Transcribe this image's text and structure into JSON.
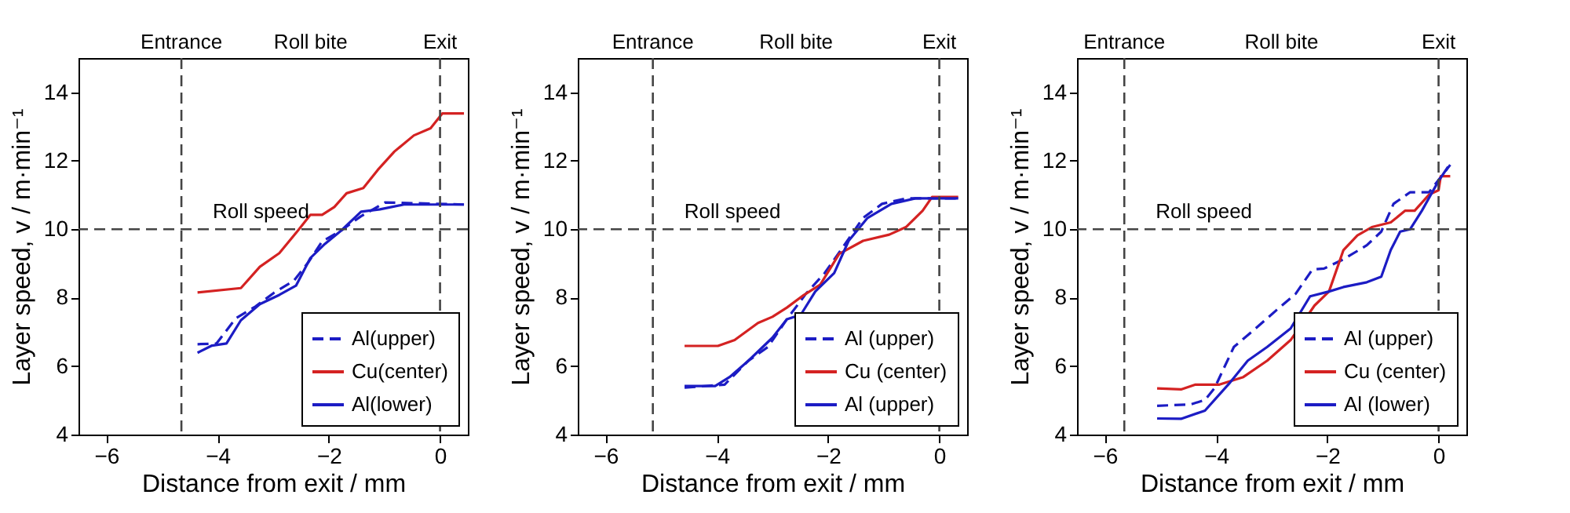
{
  "chart_data": [
    {
      "type": "line",
      "xlabel": "Distance from exit / mm",
      "ylabel": "Layer speed, v / m·min⁻¹",
      "xlim": [
        -6.5,
        0.5
      ],
      "ylim": [
        4,
        15
      ],
      "xticks": [
        -6,
        -4,
        -2,
        0
      ],
      "yticks": [
        4,
        6,
        8,
        10,
        12,
        14
      ],
      "grid": false,
      "legend": "bottom right",
      "annotations": [
        "Roll bite"
      ],
      "ref_lines": [
        {
          "axis": "x",
          "value": -4.65,
          "label": "Entrance",
          "line_style": "dashed"
        },
        {
          "axis": "x",
          "value": 0,
          "label": "Exit",
          "line_style": "dashed"
        },
        {
          "axis": "y",
          "value": 10,
          "label": "Roll speed",
          "line_style": "dashed"
        }
      ],
      "series": [
        {
          "name": "Al(upper)",
          "color": "#1c1cc4",
          "line_style": "dashed",
          "x": [
            -4.36,
            -4.02,
            -3.67,
            -3.32,
            -2.98,
            -2.63,
            -2.37,
            -2.12,
            -1.77,
            -1.42,
            -0.99,
            -0.47,
            0.43
          ],
          "values": [
            6.64,
            6.66,
            7.4,
            7.74,
            8.15,
            8.49,
            9.03,
            9.64,
            9.97,
            10.38,
            10.78,
            10.76,
            10.72
          ]
        },
        {
          "name": "Cu(center)",
          "color": "#d42222",
          "line_style": "solid",
          "x": [
            -4.36,
            -3.58,
            -3.24,
            -2.89,
            -2.55,
            -2.33,
            -2.12,
            -1.9,
            -1.68,
            -1.38,
            -1.12,
            -0.82,
            -0.47,
            -0.17,
            0.04,
            0.43
          ],
          "values": [
            8.15,
            8.28,
            8.9,
            9.3,
            9.97,
            10.42,
            10.42,
            10.65,
            11.05,
            11.2,
            11.73,
            12.27,
            12.74,
            12.95,
            13.38,
            13.38
          ]
        },
        {
          "name": "Al(lower)",
          "color": "#1c1cc4",
          "line_style": "solid",
          "x": [
            -4.36,
            -4.1,
            -3.84,
            -3.58,
            -3.24,
            -2.89,
            -2.59,
            -2.33,
            -2.07,
            -1.77,
            -1.42,
            -1.08,
            -0.65,
            0.43
          ],
          "values": [
            6.39,
            6.6,
            6.66,
            7.34,
            7.81,
            8.08,
            8.35,
            9.16,
            9.57,
            9.97,
            10.51,
            10.58,
            10.72,
            10.72
          ]
        }
      ]
    },
    {
      "type": "line",
      "xlabel": "Distance from exit / mm",
      "ylabel": "Layer speed, v / m·min⁻¹",
      "xlim": [
        -6.5,
        0.5
      ],
      "ylim": [
        4,
        15
      ],
      "xticks": [
        -6,
        -4,
        -2,
        0
      ],
      "yticks": [
        4,
        6,
        8,
        10,
        12,
        14
      ],
      "grid": false,
      "legend": "bottom right",
      "annotations": [
        "Roll bite"
      ],
      "ref_lines": [
        {
          "axis": "x",
          "value": -5.15,
          "label": "Entrance",
          "line_style": "dashed"
        },
        {
          "axis": "x",
          "value": 0,
          "label": "Exit",
          "line_style": "dashed"
        },
        {
          "axis": "y",
          "value": 10,
          "label": "Roll speed",
          "line_style": "dashed"
        }
      ],
      "series": [
        {
          "name": "Al (upper)",
          "color": "#1c1cc4",
          "line_style": "dashed",
          "x": [
            -4.58,
            -3.86,
            -3.43,
            -3.08,
            -2.74,
            -2.4,
            -2.06,
            -1.71,
            -1.37,
            -1.03,
            -0.6,
            0.34
          ],
          "values": [
            5.37,
            5.46,
            6.16,
            6.56,
            7.37,
            8.11,
            8.72,
            9.53,
            10.33,
            10.74,
            10.9,
            10.9
          ]
        },
        {
          "name": "Cu (center)",
          "color": "#d42222",
          "line_style": "solid",
          "x": [
            -4.58,
            -3.98,
            -3.68,
            -3.26,
            -3.0,
            -2.74,
            -2.44,
            -2.14,
            -1.8,
            -1.37,
            -0.9,
            -0.6,
            -0.3,
            -0.13,
            0.34
          ],
          "values": [
            6.59,
            6.59,
            6.76,
            7.26,
            7.44,
            7.71,
            8.07,
            8.38,
            9.28,
            9.66,
            9.84,
            10.06,
            10.54,
            10.94,
            10.94
          ]
        },
        {
          "name": "Al (upper)",
          "color": "#1c1cc4",
          "line_style": "solid",
          "x": [
            -4.58,
            -4.03,
            -3.77,
            -3.43,
            -3.0,
            -2.74,
            -2.49,
            -2.23,
            -1.89,
            -1.63,
            -1.29,
            -0.86,
            -0.43,
            0.34
          ],
          "values": [
            5.42,
            5.42,
            5.68,
            6.16,
            6.83,
            7.37,
            7.5,
            8.18,
            8.72,
            9.66,
            10.33,
            10.74,
            10.9,
            10.9
          ]
        }
      ]
    },
    {
      "type": "line",
      "xlabel": "Distance from exit / mm",
      "ylabel": "Layer speed, v / m·min⁻¹",
      "xlim": [
        -6.5,
        0.5
      ],
      "ylim": [
        4,
        15
      ],
      "xticks": [
        -6,
        -4,
        -2,
        0
      ],
      "yticks": [
        4,
        6,
        8,
        10,
        12,
        14
      ],
      "grid": false,
      "legend": "bottom right",
      "annotations": [
        "Roll bite"
      ],
      "ref_lines": [
        {
          "axis": "x",
          "value": -5.65,
          "label": "Entrance",
          "line_style": "dashed"
        },
        {
          "axis": "x",
          "value": 0,
          "label": "Exit",
          "line_style": "dashed"
        },
        {
          "axis": "y",
          "value": 10,
          "label": "Roll speed",
          "line_style": "dashed"
        }
      ],
      "series": [
        {
          "name": "Al (upper)",
          "color": "#1c1cc4",
          "line_style": "dashed",
          "x": [
            -5.06,
            -4.46,
            -4.2,
            -4.03,
            -3.68,
            -3.34,
            -2.91,
            -2.57,
            -2.27,
            -2.06,
            -1.71,
            -1.29,
            -1.03,
            -0.81,
            -0.51,
            -0.17,
            0.21
          ],
          "values": [
            4.84,
            4.88,
            5.01,
            5.35,
            6.56,
            7.03,
            7.64,
            8.11,
            8.82,
            8.85,
            9.12,
            9.53,
            9.93,
            10.74,
            11.08,
            11.08,
            11.88
          ]
        },
        {
          "name": "Cu (center)",
          "color": "#d42222",
          "line_style": "solid",
          "x": [
            -5.06,
            -4.63,
            -4.37,
            -3.94,
            -3.51,
            -3.08,
            -2.66,
            -2.23,
            -1.97,
            -1.71,
            -1.46,
            -1.2,
            -0.86,
            -0.6,
            -0.43,
            -0.17,
            0,
            0.04,
            0.21
          ],
          "values": [
            5.35,
            5.32,
            5.46,
            5.46,
            5.68,
            6.16,
            6.76,
            7.77,
            8.18,
            9.39,
            9.82,
            10.06,
            10.2,
            10.54,
            10.54,
            11.01,
            11.14,
            11.55,
            11.55
          ]
        },
        {
          "name": "Al (lower)",
          "color": "#1c1cc4",
          "line_style": "solid",
          "x": [
            -5.06,
            -4.63,
            -4.2,
            -3.77,
            -3.43,
            -3.08,
            -2.66,
            -2.31,
            -1.97,
            -1.71,
            -1.29,
            -1.03,
            -0.86,
            -0.69,
            -0.51,
            -0.3,
            0,
            0.17
          ],
          "values": [
            4.47,
            4.46,
            4.7,
            5.48,
            6.16,
            6.56,
            7.1,
            8.04,
            8.18,
            8.31,
            8.45,
            8.61,
            9.39,
            9.93,
            10.0,
            10.54,
            11.41,
            11.82
          ]
        }
      ]
    }
  ]
}
